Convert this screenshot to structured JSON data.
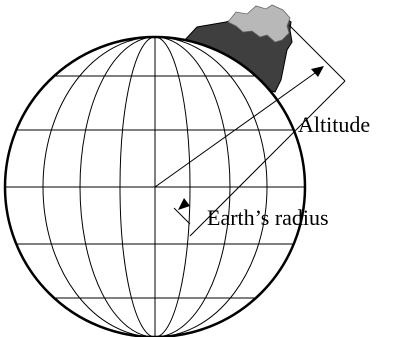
{
  "labels": {
    "altitude": "Altitude",
    "earth_radius": "Earth’s radius"
  },
  "colors": {
    "mountain_dark": "#3f3f3f",
    "mountain_light": "#b8b8b8",
    "lines": "#000000"
  }
}
